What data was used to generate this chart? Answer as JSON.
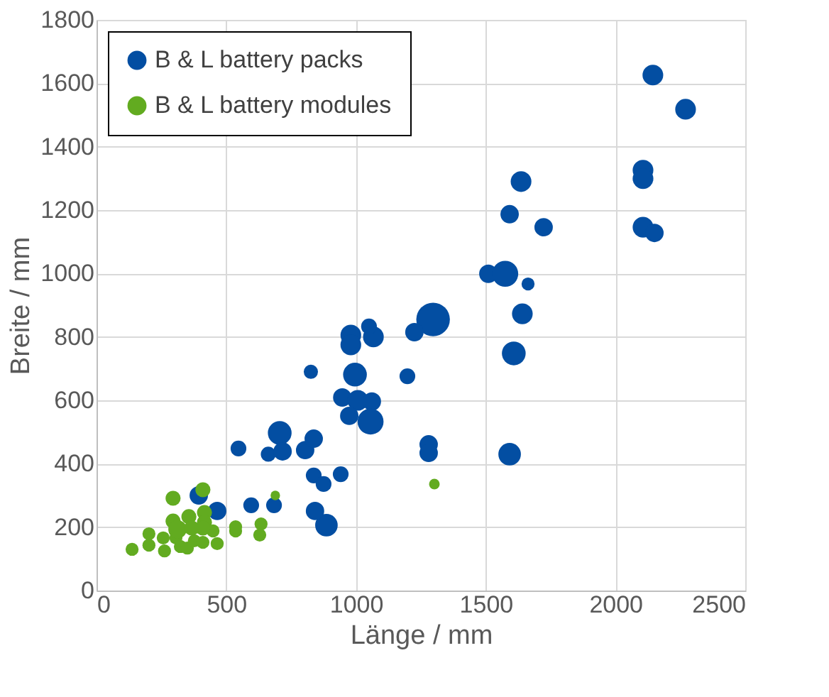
{
  "chart_data": {
    "type": "bubble",
    "xlabel": "Länge / mm",
    "ylabel": "Breite / mm",
    "xlim": [
      0,
      2500
    ],
    "ylim": [
      0,
      1800
    ],
    "xticks": [
      0,
      500,
      1000,
      1500,
      2000,
      2500
    ],
    "yticks": [
      0,
      200,
      400,
      600,
      800,
      1000,
      1200,
      1400,
      1600,
      1800
    ],
    "grid": true,
    "legend": "top left",
    "marker": "circle",
    "series": [
      {
        "name": "B & L battery packs",
        "color": "#034ea2",
        "x": [
          2144,
          2270,
          1636,
          2106,
          2106,
          1592,
          1723,
          2106,
          2150,
          1510,
          1575,
          1663,
          1641,
          1608,
          1592,
          1297,
          1225,
          1198,
          1067,
          1050,
          980,
          980,
          826,
          996,
          947,
          1007,
          1061,
          974,
          1056,
          706,
          547,
          662,
          717,
          804,
          837,
          837,
          875,
          941,
          886,
          842,
          394,
          465,
          596,
          684,
          1280,
          1280
        ],
        "values": [
          1626,
          1518,
          1290,
          1326,
          1299,
          1187,
          1146,
          1146,
          1128,
          999,
          999,
          967,
          873,
          748,
          430,
          855,
          815,
          676,
          800,
          833,
          806,
          775,
          690,
          681,
          609,
          600,
          596,
          551,
          533,
          497,
          448,
          430,
          439,
          443,
          479,
          363,
          336,
          367,
          206,
          251,
          300,
          251,
          269,
          269,
          461,
          434
        ],
        "sizes": [
          0.38,
          0.38,
          0.38,
          0.38,
          0.38,
          0.3,
          0.3,
          0.38,
          0.3,
          0.3,
          0.6,
          0.15,
          0.38,
          0.5,
          0.45,
          1,
          0.3,
          0.22,
          0.38,
          0.22,
          0.38,
          0.38,
          0.18,
          0.5,
          0.3,
          0.38,
          0.3,
          0.3,
          0.6,
          0.5,
          0.22,
          0.2,
          0.3,
          0.3,
          0.3,
          0.22,
          0.22,
          0.22,
          0.45,
          0.3,
          0.3,
          0.3,
          0.22,
          0.22,
          0.3,
          0.3
        ]
      },
      {
        "name": "B & L battery modules",
        "color": "#62ab20",
        "x": [
          137,
          202,
          202,
          262,
          295,
          306,
          295,
          312,
          323,
          350,
          377,
          410,
          410,
          416,
          416,
          449,
          410,
          536,
          536,
          634,
          629,
          689,
          1302,
          465,
          257,
          356,
          367
        ],
        "values": [
          130,
          179,
          143,
          125,
          291,
          166,
          219,
          193,
          139,
          134,
          157,
          152,
          318,
          246,
          215,
          188,
          197,
          188,
          201,
          210,
          175,
          300,
          336,
          148,
          166,
          233,
          197
        ],
        "sizes": [
          0.15,
          0.15,
          0.15,
          0.15,
          0.2,
          0.15,
          0.2,
          0.3,
          0.15,
          0.15,
          0.15,
          0.15,
          0.2,
          0.2,
          0.2,
          0.15,
          0.2,
          0.15,
          0.15,
          0.15,
          0.15,
          0.08,
          0.1,
          0.15,
          0.15,
          0.2,
          0.2
        ]
      }
    ]
  }
}
